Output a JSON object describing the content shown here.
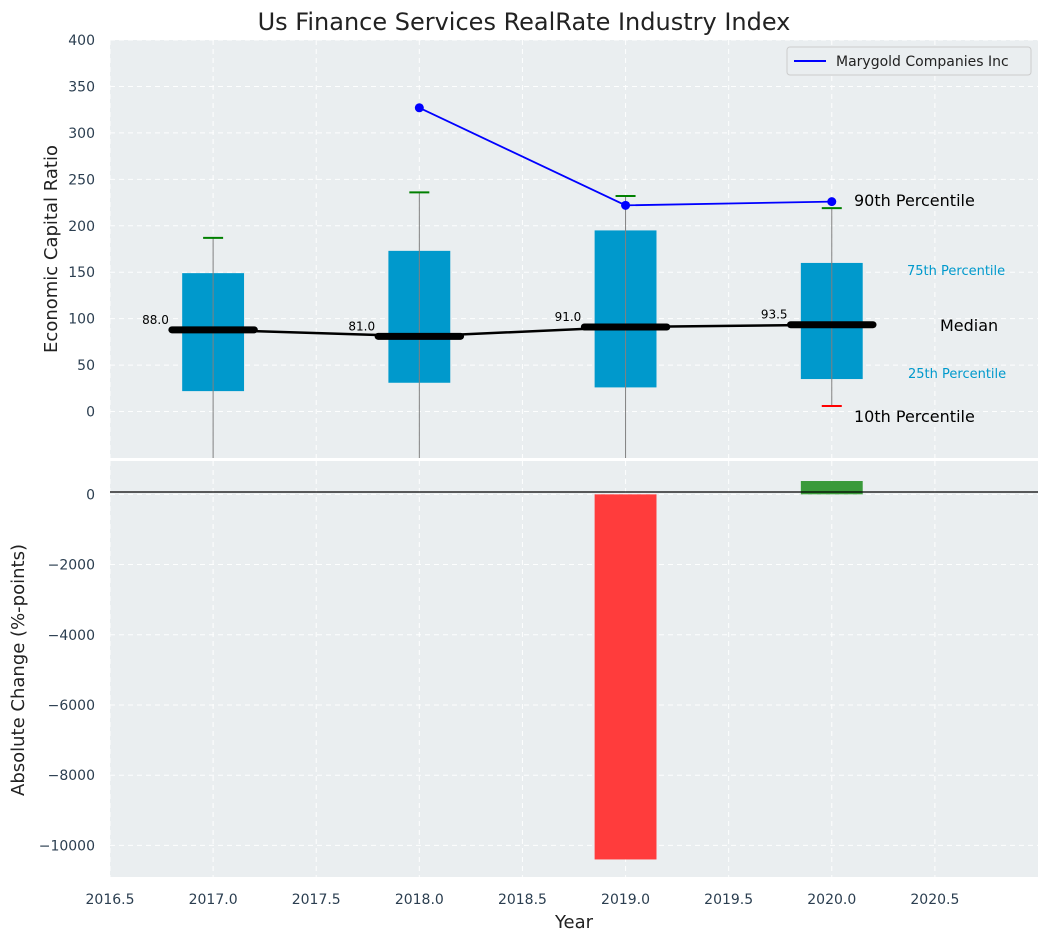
{
  "chart_data": [
    {
      "type": "box",
      "title": "Us Finance Services RealRate Industry Index",
      "ylabel": "Economic Capital Ratio",
      "xlim": [
        2016.5,
        2021.0
      ],
      "ylim": [
        -50,
        400
      ],
      "yticks": [
        0,
        50,
        100,
        150,
        200,
        250,
        300,
        350,
        400
      ],
      "years": [
        2017,
        2018,
        2019,
        2020
      ],
      "p10": [
        null,
        null,
        null,
        6
      ],
      "p25": [
        22,
        31,
        26,
        35
      ],
      "median": [
        88.0,
        81.0,
        91.0,
        93.5
      ],
      "p75": [
        149,
        173,
        195,
        160
      ],
      "p90": [
        187,
        236,
        232,
        219
      ],
      "median_labels": [
        "88.0",
        "81.0",
        "91.0",
        "93.5"
      ],
      "series": [
        {
          "name": "Marygold Companies Inc",
          "color": "#0000ff",
          "x": [
            2018,
            2019,
            2020
          ],
          "y": [
            327,
            222,
            226
          ]
        }
      ],
      "legend_position": "top-right",
      "annotations": {
        "p90": "90th Percentile",
        "p75": "75th Percentile",
        "median": "Median",
        "p25": "25th Percentile",
        "p10": "10th Percentile"
      },
      "colors": {
        "box": "#0099cc",
        "whisker_cap": "#008000",
        "p10_cap": "#ff0000",
        "median": "#000000",
        "background": "#eaeef0"
      }
    },
    {
      "type": "bar",
      "xlabel": "Year",
      "ylabel": "Absolute Change (%-points)",
      "xlim": [
        2016.5,
        2021.0
      ],
      "ylim": [
        -10900,
        950
      ],
      "yticks": [
        0,
        -2000,
        -4000,
        -6000,
        -8000,
        -10000
      ],
      "ytick_labels": [
        "0",
        "−2000",
        "−4000",
        "−6000",
        "−8000",
        "−10000"
      ],
      "xticks": [
        2016.5,
        2017.0,
        2017.5,
        2018.0,
        2018.5,
        2019.0,
        2019.5,
        2020.0,
        2020.5
      ],
      "xtick_labels": [
        "2016.5",
        "2017.0",
        "2017.5",
        "2018.0",
        "2018.5",
        "2019.0",
        "2019.5",
        "2020.0",
        "2020.5"
      ],
      "x": [
        2019,
        2020
      ],
      "values": [
        -10400,
        380
      ],
      "colors": {
        "negative": "#ff3c3c",
        "positive": "#3a9a3a"
      }
    }
  ]
}
